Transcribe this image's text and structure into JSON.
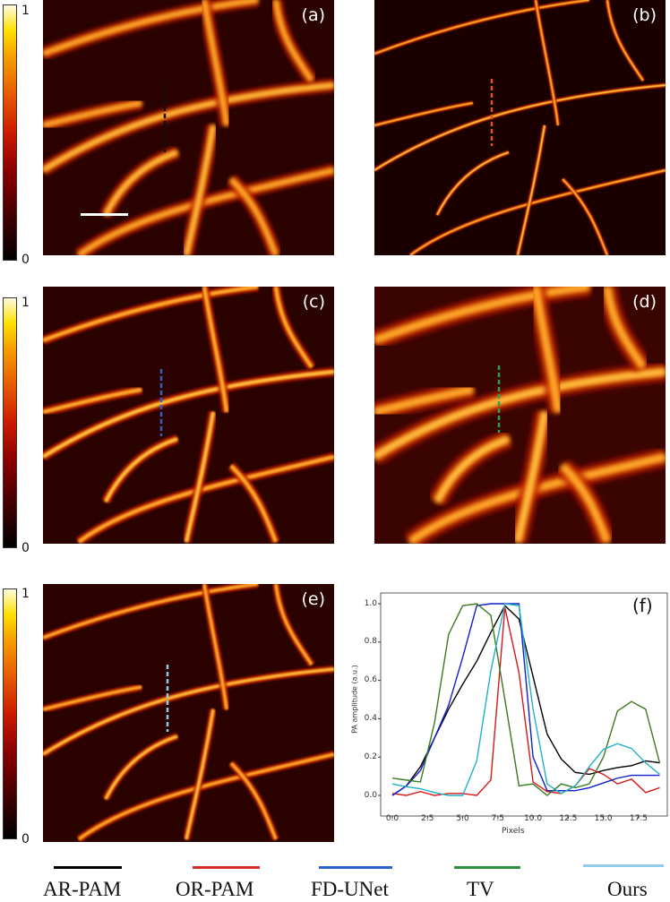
{
  "colorbars": [
    {
      "max": "1",
      "min": "0"
    },
    {
      "max": "1",
      "min": "0"
    },
    {
      "max": "1",
      "min": "0"
    }
  ],
  "panels": [
    {
      "label": "(a)"
    },
    {
      "label": "(b)"
    },
    {
      "label": "(c)"
    },
    {
      "label": "(d)"
    },
    {
      "label": "(e)"
    }
  ],
  "chart_data": {
    "type": "line",
    "panel_label": "(f)",
    "xlabel": "Pixels",
    "ylabel": "PA amplitude (a.u.)",
    "xlim": [
      -0.9,
      19.8
    ],
    "ylim": [
      -0.05,
      1.05
    ],
    "xticks": [
      "0.0",
      "2.5",
      "5.0",
      "7.5",
      "10.0",
      "12.5",
      "15.0",
      "17.5"
    ],
    "yticks": [
      "0.0",
      "0.2",
      "0.4",
      "0.6",
      "0.8",
      "1.0"
    ],
    "grid": false,
    "legend_placement": "below figure",
    "x": [
      0,
      1,
      2,
      3,
      4,
      5,
      6,
      7,
      8,
      9,
      10,
      11,
      12,
      13,
      14,
      15,
      16,
      17,
      18,
      19
    ],
    "series": [
      {
        "name": "AR-PAM",
        "color": "#000000",
        "values": [
          0.0,
          0.05,
          0.15,
          0.3,
          0.45,
          0.58,
          0.7,
          0.85,
          0.99,
          0.92,
          0.62,
          0.32,
          0.19,
          0.12,
          0.11,
          0.13,
          0.145,
          0.155,
          0.18,
          0.17
        ]
      },
      {
        "name": "OR-PAM",
        "color": "#d81818",
        "values": [
          0.01,
          0.0,
          0.02,
          0.0,
          0.01,
          0.01,
          0.0,
          0.08,
          0.98,
          0.64,
          0.07,
          0.02,
          0.01,
          0.05,
          0.14,
          0.11,
          0.06,
          0.085,
          0.015,
          0.04
        ]
      },
      {
        "name": "FD-UNet",
        "color": "#1020c8",
        "values": [
          0.0,
          0.05,
          0.13,
          0.3,
          0.47,
          0.72,
          0.99,
          1.0,
          1.0,
          1.0,
          0.2,
          0.025,
          0.025,
          0.025,
          0.04,
          0.065,
          0.09,
          0.105,
          0.105,
          0.105
        ]
      },
      {
        "name": "TV",
        "color": "#3a7a20",
        "values": [
          0.09,
          0.08,
          0.07,
          0.38,
          0.84,
          0.99,
          1.0,
          0.94,
          0.5,
          0.05,
          0.06,
          0.0,
          0.06,
          0.04,
          0.06,
          0.2,
          0.44,
          0.49,
          0.45,
          0.17
        ]
      },
      {
        "name": "Ours",
        "color": "#20b0c8",
        "values": [
          0.06,
          0.045,
          0.035,
          0.015,
          0.0,
          0.0,
          0.18,
          0.65,
          1.0,
          0.99,
          0.45,
          0.06,
          0.01,
          0.05,
          0.15,
          0.24,
          0.27,
          0.245,
          0.17,
          0.11
        ]
      }
    ]
  },
  "legend": [
    {
      "label": "AR-PAM",
      "color": "#000000"
    },
    {
      "label": "OR-PAM",
      "color": "#d42a2a"
    },
    {
      "label": "FD-UNet",
      "color": "#2a60c8"
    },
    {
      "label": "TV",
      "color": "#2a9040"
    },
    {
      "label": "Ours",
      "color": "#90cce8"
    }
  ]
}
